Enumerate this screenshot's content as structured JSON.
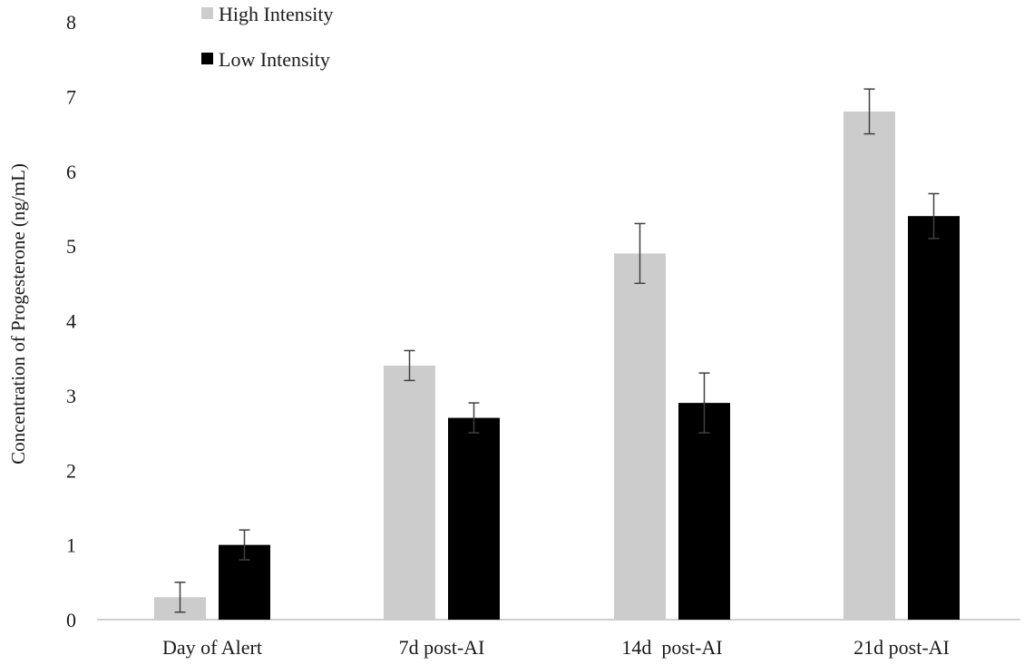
{
  "chart_data": {
    "type": "bar",
    "title": "",
    "xlabel": "",
    "ylabel": "Concentration of  Progesterone (ng/mL)",
    "ylim": [
      0,
      8
    ],
    "yticks": [
      "0",
      "1",
      "2",
      "3",
      "4",
      "5",
      "6",
      "7",
      "8"
    ],
    "categories": [
      "Day of Alert",
      "7d post-AI",
      "14d  post-AI",
      "21d post-AI"
    ],
    "series": [
      {
        "name": "High Intensity",
        "color": "#cccccc",
        "values": [
          0.3,
          3.4,
          4.9,
          6.8
        ],
        "error": [
          0.2,
          0.2,
          0.4,
          0.3
        ]
      },
      {
        "name": "Low Intensity",
        "color": "#000000",
        "values": [
          1.0,
          2.7,
          2.9,
          5.4
        ],
        "error": [
          0.2,
          0.2,
          0.4,
          0.3
        ]
      }
    ],
    "grid": false,
    "legend": "top-left"
  }
}
